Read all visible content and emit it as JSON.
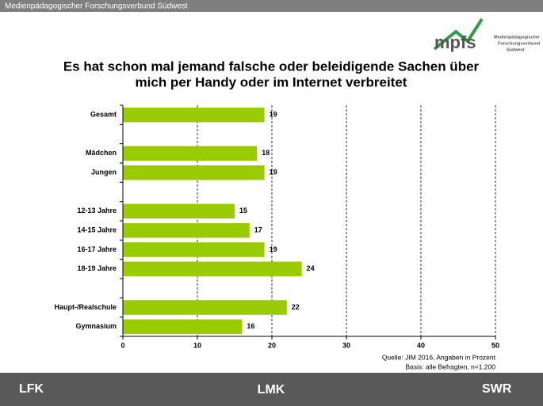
{
  "header": {
    "title": "Medienpädagogischer Forschungsverbund Südwest"
  },
  "logo": {
    "mark": "mpfs",
    "text_lines": [
      "Medienpädagogischer",
      "Forschungsverbund",
      "Südwest"
    ]
  },
  "chart_data": {
    "type": "bar",
    "orientation": "horizontal",
    "title_lines": [
      "Es hat schon mal jemand falsche oder beleidigende Sachen über",
      "mich per Handy oder im Internet verbreitet"
    ],
    "categories": [
      "Gesamt",
      null,
      "Mädchen",
      "Jungen",
      null,
      "12-13 Jahre",
      "14-15 Jahre",
      "16-17 Jahre",
      "18-19 Jahre",
      null,
      "Haupt-/Realschule",
      "Gymnasium"
    ],
    "values": [
      19,
      null,
      18,
      19,
      null,
      15,
      17,
      19,
      24,
      null,
      22,
      16
    ],
    "color": "#99cc00",
    "xlim": [
      0,
      50
    ],
    "xticks": [
      0,
      10,
      20,
      30,
      40,
      50
    ],
    "grid": true,
    "source_lines": [
      "Quelle: JIM 2016, Angaben in Prozent",
      "Basis: alle Befragten, n=1.200"
    ]
  },
  "footer": {
    "logos": [
      "LFK",
      "LMK",
      "SWR"
    ]
  }
}
